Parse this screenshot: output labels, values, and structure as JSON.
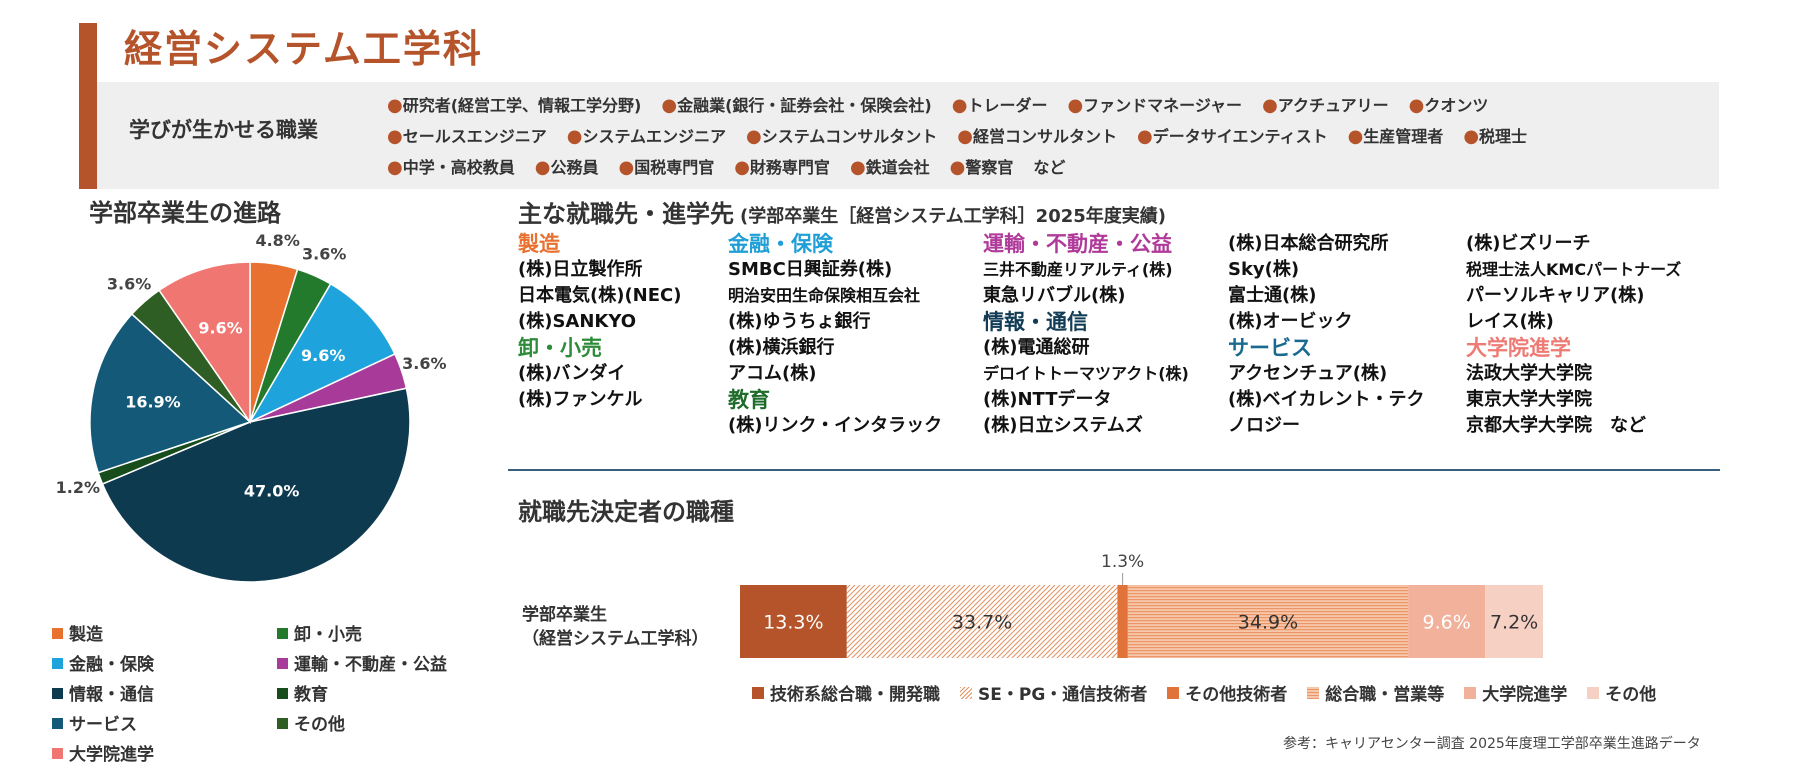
{
  "header": {
    "title": "経営システム工学科",
    "careers_label": "学びが生かせる職業",
    "careers_lines": [
      [
        "研究者(経営工学、情報工学分野)",
        "金融業(銀行・証券会社・保険会社)",
        "トレーダー",
        "ファンドマネージャー",
        "アクチュアリー",
        "クオンツ"
      ],
      [
        "セールスエンジニア",
        "システムエンジニア",
        "システムコンサルタント",
        "経営コンサルタント",
        "データサイエンティスト",
        "生産管理者",
        "税理士"
      ],
      [
        "中学・高校教員",
        "公務員",
        "国税専門官",
        "財務専門官",
        "鉄道会社",
        "警察官"
      ]
    ],
    "careers_etc": "など",
    "accent_color": "#b5542a"
  },
  "pie_section": {
    "heading": "学部卒業生の進路"
  },
  "employers_section": {
    "heading": "主な就職先・進学先",
    "subheading": "(学部卒業生［経営システム工学科］2025年度実績)",
    "columns": [
      [
        {
          "type": "category",
          "text": "製造",
          "color": "#e8712f"
        },
        {
          "type": "item",
          "text": "(株)日立製作所"
        },
        {
          "type": "item",
          "text": "日本電気(株)(NEC)"
        },
        {
          "type": "item",
          "text": "(株)SANKYO"
        },
        {
          "type": "category",
          "text": "卸・小売",
          "color": "#2e8b3a"
        },
        {
          "type": "item",
          "text": "(株)バンダイ"
        },
        {
          "type": "item",
          "text": "(株)ファンケル"
        }
      ],
      [
        {
          "type": "category",
          "text": "金融・保険",
          "color": "#1f9fd6"
        },
        {
          "type": "item",
          "text": "SMBC日興証券(株)"
        },
        {
          "type": "item",
          "text": "明治安田生命保険相互会社",
          "small": true
        },
        {
          "type": "item",
          "text": "(株)ゆうちょ銀行"
        },
        {
          "type": "item",
          "text": "(株)横浜銀行"
        },
        {
          "type": "item",
          "text": "アコム(株)"
        },
        {
          "type": "category",
          "text": "教育",
          "color": "#1e6b2a"
        },
        {
          "type": "item",
          "text": "(株)リンク・インタラック"
        }
      ],
      [
        {
          "type": "category",
          "text": "運輸・不動産・公益",
          "color": "#b03a9a"
        },
        {
          "type": "item",
          "text": "三井不動産リアルティ(株)",
          "small": true
        },
        {
          "type": "item",
          "text": "東急リバブル(株)"
        },
        {
          "type": "category",
          "text": "情報・通信",
          "color": "#123c56"
        },
        {
          "type": "item",
          "text": "(株)電通総研"
        },
        {
          "type": "item",
          "text": "デロイトトーマツアクト(株)",
          "small": true
        },
        {
          "type": "item",
          "text": "(株)NTTデータ"
        },
        {
          "type": "item",
          "text": "(株)日立システムズ"
        }
      ],
      [
        {
          "type": "item",
          "text": "(株)日本総合研究所"
        },
        {
          "type": "item",
          "text": "Sky(株)"
        },
        {
          "type": "item",
          "text": "富士通(株)"
        },
        {
          "type": "item",
          "text": "(株)オービック"
        },
        {
          "type": "category",
          "text": "サービス",
          "color": "#1a6a8f"
        },
        {
          "type": "item",
          "text": "アクセンチュア(株)"
        },
        {
          "type": "item",
          "text": "(株)ベイカレント・テク"
        },
        {
          "type": "item",
          "text": "ノロジー"
        }
      ],
      [
        {
          "type": "item",
          "text": "(株)ビズリーチ"
        },
        {
          "type": "item",
          "text": "税理士法人KMCパートナーズ",
          "small": true
        },
        {
          "type": "item",
          "text": "パーソルキャリア(株)"
        },
        {
          "type": "item",
          "text": "レイス(株)"
        },
        {
          "type": "category",
          "text": "大学院進学",
          "color": "#ee7a74"
        },
        {
          "type": "item",
          "text": "法政大学大学院"
        },
        {
          "type": "item",
          "text": "東京大学大学院"
        },
        {
          "type": "item",
          "text": "京都大学大学院　など"
        }
      ]
    ]
  },
  "job_section": {
    "heading": "就職先決定者の職種",
    "bar_label": [
      "学部卒業生",
      "（経営システム工学科）"
    ]
  },
  "source_note": "参考：キャリアセンター調査 2025年度理工学部卒業生進路データ",
  "chart_data": [
    {
      "type": "pie",
      "title": "学部卒業生の進路",
      "start": "12 o'clock, clockwise",
      "slices": [
        {
          "label": "製造",
          "value": 4.8,
          "value_label": "4.8%",
          "color": "#e8712f",
          "label_pos": "outside"
        },
        {
          "label": "卸・小売",
          "value": 3.6,
          "value_label": "3.6%",
          "color": "#237a2c",
          "label_pos": "outside"
        },
        {
          "label": "金融・保険",
          "value": 9.6,
          "value_label": "9.6%",
          "color": "#1fa3dc",
          "label_pos": "inside"
        },
        {
          "label": "運輸・不動産・公益",
          "value": 3.6,
          "value_label": "3.6%",
          "color": "#a83a9a",
          "label_pos": "outside"
        },
        {
          "label": "情報・通信",
          "value": 47.0,
          "value_label": "47.0%",
          "color": "#0e3a50",
          "label_pos": "inside"
        },
        {
          "label": "教育",
          "value": 1.2,
          "value_label": "1.2%",
          "color": "#174d1d",
          "label_pos": "outside"
        },
        {
          "label": "サービス",
          "value": 16.9,
          "value_label": "16.9%",
          "color": "#145a78",
          "label_pos": "inside"
        },
        {
          "label": "その他",
          "value": 3.6,
          "value_label": "3.6%",
          "color": "#2f5e24",
          "label_pos": "outside"
        },
        {
          "label": "大学院進学",
          "value": 9.6,
          "value_label": "9.6%",
          "color": "#f07672",
          "label_pos": "inside"
        }
      ],
      "legend": [
        {
          "label": "製造",
          "color": "#e8712f"
        },
        {
          "label": "卸・小売",
          "color": "#237a2c"
        },
        {
          "label": "金融・保険",
          "color": "#1fa3dc"
        },
        {
          "label": "運輸・不動産・公益",
          "color": "#a83a9a"
        },
        {
          "label": "情報・通信",
          "color": "#0e3a50"
        },
        {
          "label": "教育",
          "color": "#174d1d"
        },
        {
          "label": "サービス",
          "color": "#145a78"
        },
        {
          "label": "その他",
          "color": "#2f5e24"
        },
        {
          "label": "大学院進学",
          "color": "#f07672"
        }
      ],
      "legend_position": "bottom"
    },
    {
      "type": "bar",
      "orientation": "horizontal-stacked",
      "title": "就職先決定者の職種",
      "categories": [
        "学部卒業生（経営システム工学科）"
      ],
      "series": [
        {
          "name": "技術系総合職・開発職",
          "values": [
            13.3
          ],
          "value_label": "13.3%",
          "color": "#b5542a",
          "pattern": "solid",
          "label_color": "#ffffff"
        },
        {
          "name": "SE・PG・通信技術者",
          "values": [
            33.7
          ],
          "value_label": "33.7%",
          "color": "#e9a37a",
          "pattern": "diagonal",
          "label_color": "#333333"
        },
        {
          "name": "その他技術者",
          "values": [
            1.3
          ],
          "value_label": "1.3%",
          "color": "#e1733a",
          "pattern": "solid",
          "label_pos": "above"
        },
        {
          "name": "総合職・営業等",
          "values": [
            34.9
          ],
          "value_label": "34.9%",
          "color": "#f2a67c",
          "pattern": "horizontal",
          "label_color": "#333333"
        },
        {
          "name": "大学院進学",
          "values": [
            9.6
          ],
          "value_label": "9.6%",
          "color": "#f2b19a",
          "pattern": "solid",
          "label_color": "#ffffff"
        },
        {
          "name": "その他",
          "values": [
            7.2
          ],
          "value_label": "7.2%",
          "color": "#f7d0c4",
          "pattern": "solid",
          "label_color": "#333333"
        }
      ],
      "legend_position": "bottom"
    }
  ]
}
